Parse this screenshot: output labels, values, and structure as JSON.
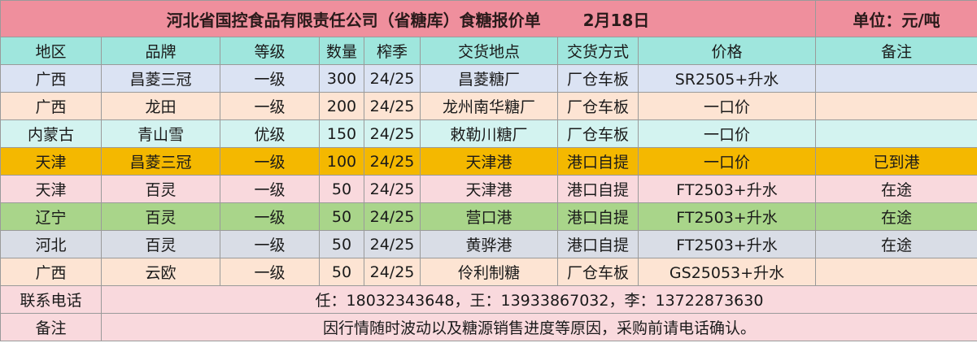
{
  "title": {
    "main": "河北省国控食品有限责任公司（省糖库）食糖报价单",
    "date": "2月18日",
    "unit": "单位：元/吨"
  },
  "columns": [
    "地区",
    "品牌",
    "等级",
    "数量",
    "榨季",
    "交货地点",
    "交货方式",
    "价格",
    "备注"
  ],
  "rows": [
    {
      "region": "广西",
      "brand": "昌菱三冠",
      "grade": "一级",
      "qty": "300",
      "season": "24/25",
      "location": "昌菱糖厂",
      "delivery": "厂仓车板",
      "price": "SR2505+升水",
      "note": "",
      "bg": "#dbe3f3"
    },
    {
      "region": "广西",
      "brand": "龙田",
      "grade": "一级",
      "qty": "200",
      "season": "24/25",
      "location": "龙州南华糖厂",
      "delivery": "厂仓车板",
      "price": "一口价",
      "note": "",
      "bg": "#fde4d3"
    },
    {
      "region": "内蒙古",
      "brand": "青山雪",
      "grade": "优级",
      "qty": "150",
      "season": "24/25",
      "location": "敕勒川糖厂",
      "delivery": "厂仓车板",
      "price": "一口价",
      "note": "",
      "bg": "#d3f3f0"
    },
    {
      "region": "天津",
      "brand": "昌菱三冠",
      "grade": "一级",
      "qty": "100",
      "season": "24/25",
      "location": "天津港",
      "delivery": "港口自提",
      "price": "一口价",
      "note": "已到港",
      "bg": "#f4b800"
    },
    {
      "region": "天津",
      "brand": "百灵",
      "grade": "一级",
      "qty": "50",
      "season": "24/25",
      "location": "天津港",
      "delivery": "港口自提",
      "price": "FT2503+升水",
      "note": "在途",
      "bg": "#f9d9dd"
    },
    {
      "region": "辽宁",
      "brand": "百灵",
      "grade": "一级",
      "qty": "50",
      "season": "24/25",
      "location": "营口港",
      "delivery": "港口自提",
      "price": "FT2503+升水",
      "note": "在途",
      "bg": "#a9d58a"
    },
    {
      "region": "河北",
      "brand": "百灵",
      "grade": "一级",
      "qty": "50",
      "season": "24/25",
      "location": "黄骅港",
      "delivery": "港口自提",
      "price": "FT2503+升水",
      "note": "在途",
      "bg": "#d9dde6"
    },
    {
      "region": "广西",
      "brand": "云欧",
      "grade": "一级",
      "qty": "50",
      "season": "24/25",
      "location": "伶利制糖",
      "delivery": "厂仓车板",
      "price": "GS25053+升水",
      "note": "",
      "bg": "#fde4d3"
    }
  ],
  "footer": {
    "contact_label": "联系电话",
    "contact_value": "任：18032343648，王：13933867032，李：13722873630",
    "remark_label": "备注",
    "remark_value": "因行情随时波动以及糖源销售进度等原因，采购前请电话确认。",
    "bg": "#f9d9dd"
  }
}
